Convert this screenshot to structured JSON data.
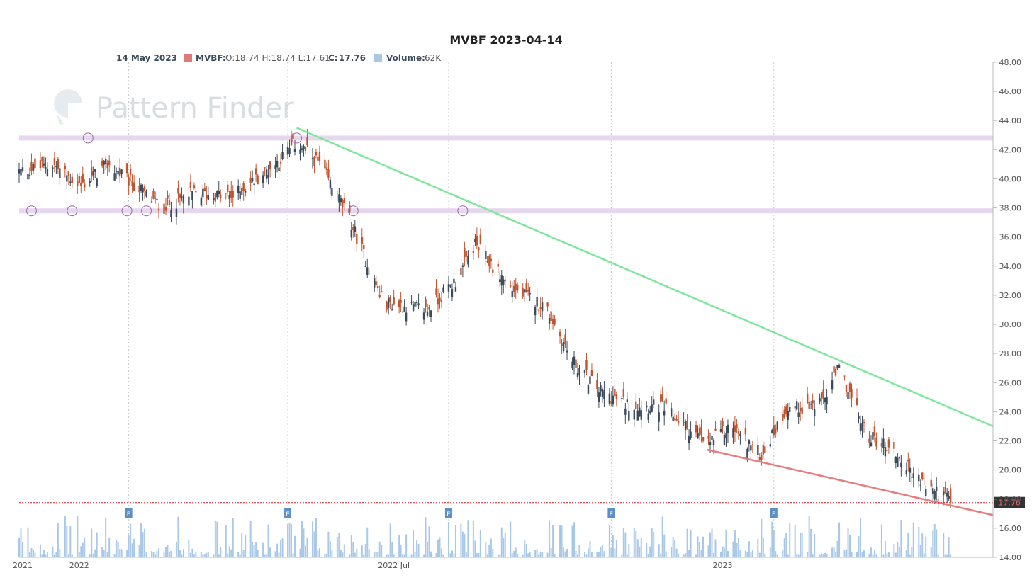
{
  "chart_data": {
    "type": "candlestick",
    "title": "MVBF 2023-04-14",
    "watermark": "Pattern Finder",
    "legend": {
      "date": "14 May 2023",
      "symbol_label": "MVBF:",
      "ohlc_text": "O:18.74 H:18.74 L:17.61",
      "close_label": "C:",
      "close_value": "17.76",
      "volume_label": "Volume:",
      "volume_value": "62K"
    },
    "colors": {
      "up": "#3b4a5a",
      "down": "#c0552f",
      "volume": "#a9c8e8",
      "support_band": "#e6d7ee",
      "resistance_trend": "#7ee89a",
      "support_trend": "#e87c7c",
      "last_price": "#e46b6b",
      "earnings": "#5b8fc7"
    },
    "y_axis": {
      "min": 14,
      "max": 48,
      "ticks": [
        "48.00",
        "46.00",
        "44.00",
        "42.00",
        "40.00",
        "38.00",
        "36.00",
        "34.00",
        "32.00",
        "30.00",
        "28.00",
        "26.00",
        "24.00",
        "22.00",
        "20.00",
        "18.00",
        "16.00",
        "14.00"
      ]
    },
    "x_axis": {
      "start": "2021-12-01",
      "end": "2023-06-05",
      "labels": [
        {
          "date": "2021-12-03",
          "text": "2021"
        },
        {
          "date": "2022-01-04",
          "text": "2022"
        },
        {
          "date": "2022-07-01",
          "text": "2022 Jul"
        },
        {
          "date": "2023-01-03",
          "text": "2023"
        }
      ],
      "gridlines": [
        "2022-02-01",
        "2022-05-02",
        "2022-08-01",
        "2022-11-01",
        "2023-02-01"
      ]
    },
    "last_price": 17.76,
    "horizontal_levels": [
      42.8,
      37.8
    ],
    "level_touches": [
      {
        "date": "2022-01-09",
        "price": 42.8
      },
      {
        "date": "2022-05-07",
        "price": 42.8
      },
      {
        "date": "2021-12-08",
        "price": 37.8
      },
      {
        "date": "2021-12-31",
        "price": 37.8
      },
      {
        "date": "2022-01-31",
        "price": 37.8
      },
      {
        "date": "2022-02-11",
        "price": 37.8
      },
      {
        "date": "2022-06-08",
        "price": 37.8
      },
      {
        "date": "2022-08-09",
        "price": 37.8
      }
    ],
    "trend_lines": [
      {
        "name": "resistance",
        "from": {
          "date": "2022-05-07",
          "price": 43.5
        },
        "to": {
          "date": "2023-06-05",
          "price": 23.0
        }
      },
      {
        "name": "support",
        "from": {
          "date": "2022-12-25",
          "price": 21.4
        },
        "to": {
          "date": "2023-06-05",
          "price": 16.9
        }
      }
    ],
    "earnings": [
      "2022-02-01",
      "2022-05-02",
      "2022-08-01",
      "2022-11-01",
      "2023-02-01"
    ],
    "earnings_label": "E",
    "price_path": [
      {
        "date": "2021-12-01",
        "price": 40.5
      },
      {
        "date": "2021-12-20",
        "price": 41.0
      },
      {
        "date": "2022-01-05",
        "price": 39.5
      },
      {
        "date": "2022-01-20",
        "price": 41.0
      },
      {
        "date": "2022-02-05",
        "price": 39.5
      },
      {
        "date": "2022-02-20",
        "price": 38.0
      },
      {
        "date": "2022-03-10",
        "price": 39.0
      },
      {
        "date": "2022-04-01",
        "price": 38.8
      },
      {
        "date": "2022-04-25",
        "price": 41.0
      },
      {
        "date": "2022-05-07",
        "price": 42.5
      },
      {
        "date": "2022-05-20",
        "price": 41.0
      },
      {
        "date": "2022-06-05",
        "price": 37.5
      },
      {
        "date": "2022-06-25",
        "price": 31.5
      },
      {
        "date": "2022-07-20",
        "price": 31.0
      },
      {
        "date": "2022-08-05",
        "price": 33.0
      },
      {
        "date": "2022-08-16",
        "price": 35.5
      },
      {
        "date": "2022-09-05",
        "price": 32.5
      },
      {
        "date": "2022-09-25",
        "price": 31.2
      },
      {
        "date": "2022-10-10",
        "price": 27.5
      },
      {
        "date": "2022-10-25",
        "price": 25.5
      },
      {
        "date": "2022-11-10",
        "price": 24.5
      },
      {
        "date": "2022-11-30",
        "price": 24.3
      },
      {
        "date": "2022-12-15",
        "price": 22.8
      },
      {
        "date": "2022-12-25",
        "price": 21.8
      },
      {
        "date": "2023-01-08",
        "price": 23.0
      },
      {
        "date": "2023-01-25",
        "price": 21.0
      },
      {
        "date": "2023-02-08",
        "price": 24.2
      },
      {
        "date": "2023-02-28",
        "price": 24.5
      },
      {
        "date": "2023-03-10",
        "price": 27.0
      },
      {
        "date": "2023-03-25",
        "price": 22.5
      },
      {
        "date": "2023-04-08",
        "price": 21.5
      },
      {
        "date": "2023-04-25",
        "price": 19.2
      },
      {
        "date": "2023-05-14",
        "price": 17.76
      }
    ]
  }
}
